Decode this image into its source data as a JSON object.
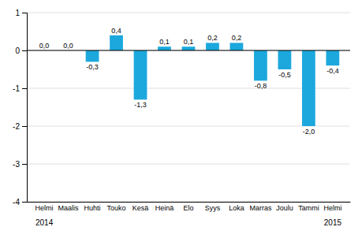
{
  "chart_data": {
    "type": "bar",
    "categories": [
      "Helmi",
      "Maalis",
      "Huhti",
      "Touko",
      "Kesä",
      "Heinä",
      "Elo",
      "Syys",
      "Loka",
      "Marras",
      "Joulu",
      "Tammi",
      "Helmi"
    ],
    "values": [
      0.0,
      0.0,
      -0.3,
      0.4,
      -1.3,
      0.1,
      0.1,
      0.2,
      0.2,
      -0.8,
      -0.5,
      -2.0,
      -0.4
    ],
    "value_labels": [
      "0,0",
      "0,0",
      "-0,3",
      "0,4",
      "-1,3",
      "0,1",
      "0,1",
      "0,2",
      "0,2",
      "-0,8",
      "-0,5",
      "-2,0",
      "-0,4"
    ],
    "color": "#1ca8dd",
    "ylim": [
      -4,
      1
    ],
    "yticks": [
      -4,
      -3,
      -2,
      -1,
      0,
      1
    ],
    "grid": true,
    "data_labels": true,
    "annotations": [
      "2014",
      "2015"
    ]
  }
}
